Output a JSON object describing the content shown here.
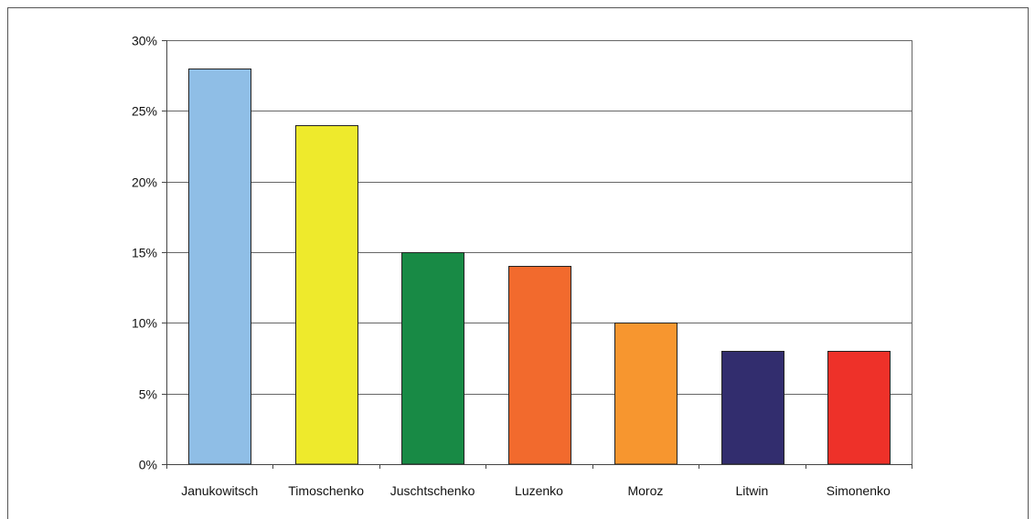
{
  "chart_data": {
    "type": "bar",
    "title": "",
    "xlabel": "",
    "ylabel": "",
    "categories": [
      "Janukowitsch",
      "Timoschenko",
      "Juschtschenko",
      "Luzenko",
      "Moroz",
      "Litwin",
      "Simonenko"
    ],
    "values": [
      28,
      24,
      15,
      14,
      10,
      8,
      8
    ],
    "colors": [
      "#8fbee6",
      "#eeea2c",
      "#188a45",
      "#f26a2d",
      "#f7962f",
      "#322d6e",
      "#ee3129"
    ],
    "ylim": [
      0,
      30
    ],
    "yticks": [
      0,
      5,
      10,
      15,
      20,
      25,
      30
    ],
    "ytick_labels": [
      "0%",
      "5%",
      "10%",
      "15%",
      "20%",
      "25%",
      "30%"
    ],
    "grid": true,
    "legend": "none"
  }
}
